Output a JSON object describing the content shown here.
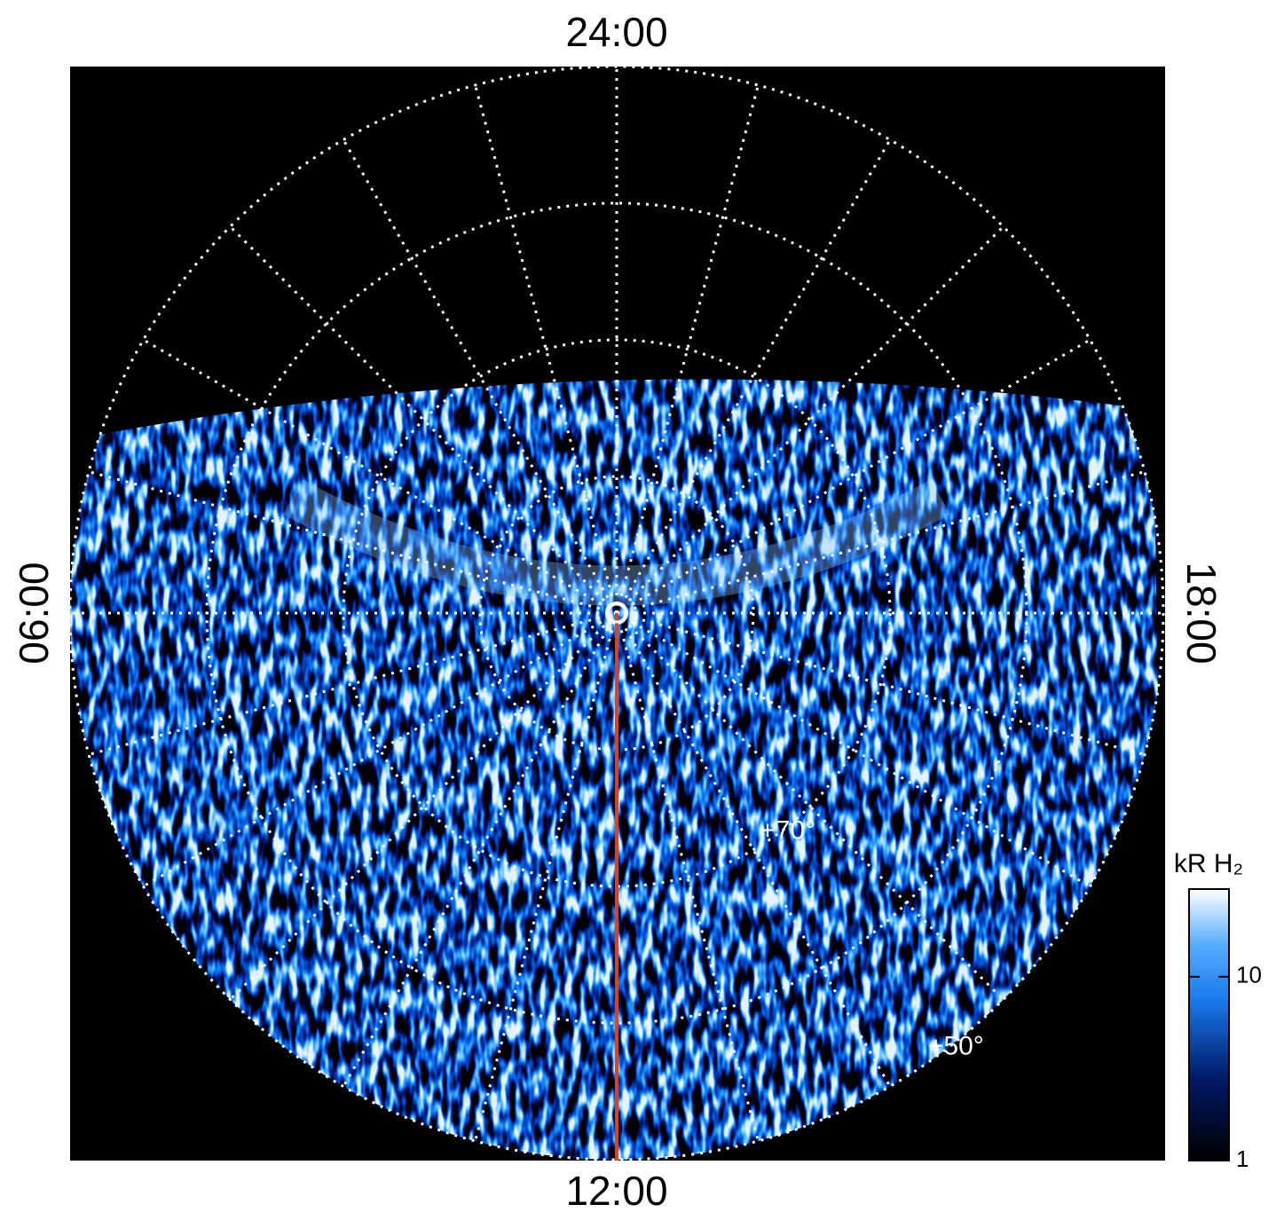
{
  "chart_data": {
    "type": "polar",
    "local_time_labels": {
      "top": "24:00",
      "bottom": "12:00",
      "left": "06:00",
      "right": "18:00"
    },
    "rlim": [
      90,
      50
    ],
    "latitude_rings": [
      80,
      70,
      60,
      50
    ],
    "meridians": 24,
    "latitude_labels": [
      {
        "value": 70,
        "label": "+70°"
      },
      {
        "value": 50,
        "label": "+50°"
      }
    ],
    "colorbar": {
      "label": "kR H₂",
      "scale": "log",
      "clim": [
        1,
        30
      ],
      "ticks": [
        1,
        10
      ]
    }
  }
}
